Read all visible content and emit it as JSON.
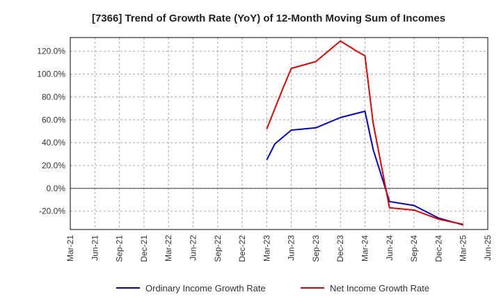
{
  "chart_data": {
    "type": "line",
    "title": "[7366]  Trend of Growth Rate (YoY) of 12-Month Moving Sum of Incomes",
    "xlabel": "",
    "ylabel": "",
    "x": [
      "Mar-21",
      "Jun-21",
      "Sep-21",
      "Dec-21",
      "Mar-22",
      "Jun-22",
      "Sep-22",
      "Dec-22",
      "Mar-23",
      "Jun-23",
      "Sep-23",
      "Dec-23",
      "Mar-24",
      "Jun-24",
      "Sep-24",
      "Dec-24",
      "Mar-25",
      "Jun-25"
    ],
    "ylim": [
      -36,
      132
    ],
    "yticks": [
      -20,
      0,
      20,
      40,
      60,
      80,
      100,
      120
    ],
    "ytick_labels": [
      "-20.0%",
      "0.0%",
      "20.0%",
      "40.0%",
      "60.0%",
      "80.0%",
      "100.0%",
      "120.0%"
    ],
    "grid": true,
    "legend_position": "bottom",
    "series": [
      {
        "name": "Ordinary Income Growth Rate",
        "color": "#0000cc",
        "points": [
          [
            "Mar-23",
            25.0
          ],
          [
            "Apr-23",
            39.0
          ],
          [
            "Jun-23",
            51.0
          ],
          [
            "Sep-23",
            53.0
          ],
          [
            "Dec-23",
            62.0
          ],
          [
            "Mar-24",
            67.5
          ],
          [
            "Apr-24",
            34.0
          ],
          [
            "Jun-24",
            -11.5
          ],
          [
            "Sep-24",
            -15.0
          ],
          [
            "Dec-24",
            -26.0
          ],
          [
            "Mar-25",
            -32.0
          ]
        ]
      },
      {
        "name": "Net Income Growth Rate",
        "color": "#e00000",
        "points": [
          [
            "Mar-23",
            52.0
          ],
          [
            "May-23",
            88.0
          ],
          [
            "Jun-23",
            105.0
          ],
          [
            "Sep-23",
            111.0
          ],
          [
            "Dec-23",
            129.0
          ],
          [
            "Feb-24",
            120.0
          ],
          [
            "Mar-24",
            116.0
          ],
          [
            "Apr-24",
            57.0
          ],
          [
            "Jun-24",
            -17.0
          ],
          [
            "Sep-24",
            -19.0
          ],
          [
            "Dec-24",
            -27.0
          ],
          [
            "Mar-25",
            -31.5
          ]
        ]
      }
    ]
  }
}
